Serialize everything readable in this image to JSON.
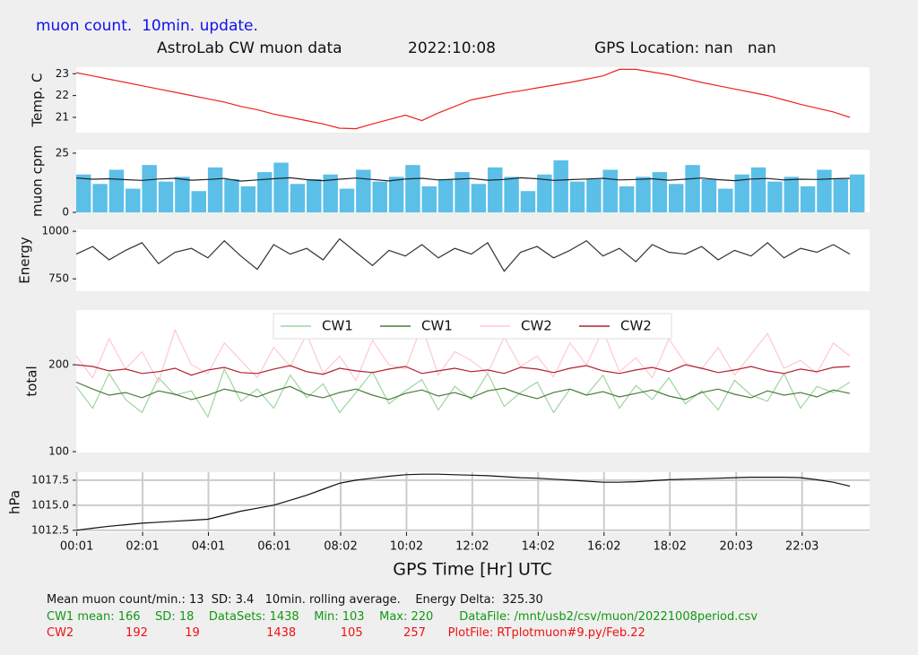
{
  "header": {
    "subtitle": "muon count.  10min. update.",
    "title": "AstroLab CW muon data",
    "date": "2022:10:08",
    "location": "GPS Location: nan   nan"
  },
  "xlabel": "GPS Time  [Hr] UTC",
  "footer": {
    "lines": [
      "Mean muon count/min.: 13  SD: 3.4   10min. rolling average.    Energy Delta:  325.30",
      "CW1 mean: 166    SD: 18    DataSets: 1438    Min: 103    Max: 220       DataFile: /mnt/usb2/csv/muon/20221008period.csv",
      "CW2              192          19                  1438            105           257      PlotFile: RTplotmuon#9.py/Feb.22"
    ]
  },
  "chart_data": [
    {
      "type": "line",
      "ylabel": "Temp. C",
      "xlim": [
        0,
        24.1
      ],
      "ylim": [
        20.3,
        23.3
      ],
      "yticks": [
        21,
        22,
        23
      ],
      "grid": false,
      "x": [
        0,
        0.5,
        1,
        1.5,
        2,
        2.5,
        3,
        3.5,
        4,
        4.5,
        5,
        5.5,
        6,
        6.5,
        7,
        7.5,
        8,
        8.5,
        9,
        9.5,
        10,
        10.5,
        11,
        11.5,
        12,
        12.5,
        13,
        13.5,
        14,
        14.5,
        15,
        15.5,
        16,
        16.5,
        17,
        17.5,
        18,
        18.5,
        19,
        19.5,
        20,
        20.5,
        21,
        21.5,
        22,
        22.5,
        23,
        23.5
      ],
      "series": [
        {
          "type": "line",
          "color": "#ee2222",
          "values": [
            23.05,
            22.9,
            22.75,
            22.6,
            22.45,
            22.3,
            22.15,
            22.0,
            21.85,
            21.7,
            21.5,
            21.35,
            21.15,
            21.0,
            20.85,
            20.7,
            20.5,
            20.48,
            20.7,
            20.9,
            21.1,
            20.85,
            21.2,
            21.5,
            21.8,
            21.95,
            22.1,
            22.22,
            22.35,
            22.48,
            22.6,
            22.75,
            22.9,
            23.2,
            23.2,
            23.08,
            22.95,
            22.78,
            22.6,
            22.45,
            22.3,
            22.15,
            22.0,
            21.8,
            21.6,
            21.42,
            21.25,
            21.0
          ]
        }
      ]
    },
    {
      "type": "line",
      "ylabel": "muon cpm",
      "xlim": [
        0,
        24.1
      ],
      "ylim": [
        0,
        26.5
      ],
      "yticks": [
        0,
        25
      ],
      "grid": false,
      "x": [
        0,
        0.5,
        1,
        1.5,
        2,
        2.5,
        3,
        3.5,
        4,
        4.5,
        5,
        5.5,
        6,
        6.5,
        7,
        7.5,
        8,
        8.5,
        9,
        9.5,
        10,
        10.5,
        11,
        11.5,
        12,
        12.5,
        13,
        13.5,
        14,
        14.5,
        15,
        15.5,
        16,
        16.5,
        17,
        17.5,
        18,
        18.5,
        19,
        19.5,
        20,
        20.5,
        21,
        21.5,
        22,
        22.5,
        23,
        23.5
      ],
      "series": [
        {
          "type": "bar",
          "color": "#5bbfe8",
          "values": [
            16,
            12,
            18,
            10,
            20,
            13,
            15,
            9,
            19,
            14,
            11,
            17,
            21,
            12,
            14,
            16,
            10,
            18,
            13,
            15,
            20,
            11,
            14,
            17,
            12,
            19,
            15,
            9,
            16,
            22,
            13,
            14,
            18,
            11,
            15,
            17,
            12,
            20,
            14,
            10,
            16,
            19,
            13,
            15,
            11,
            18,
            14,
            16
          ]
        },
        {
          "type": "line",
          "color": "#222222",
          "values": [
            14.5,
            14,
            14.2,
            13.8,
            13.5,
            14.1,
            14.4,
            13.6,
            13.9,
            14.3,
            13.2,
            13.7,
            14.2,
            14.6,
            13.8,
            13.4,
            14,
            14.5,
            13.9,
            13.3,
            14.1,
            14.4,
            13.7,
            14,
            14.3,
            13.6,
            13.9,
            14.6,
            14.2,
            13.5,
            13.8,
            14.1,
            14.4,
            13.7,
            13.9,
            14.2,
            13.6,
            14,
            14.5,
            13.8,
            13.4,
            14.1,
            14.3,
            13.7,
            14,
            13.9,
            14.2,
            14.4
          ]
        }
      ]
    },
    {
      "type": "line",
      "ylabel": "Energy",
      "xlim": [
        0,
        24.1
      ],
      "ylim": [
        685,
        1010
      ],
      "yticks": [
        750,
        1000
      ],
      "grid": false,
      "x": [
        0,
        0.5,
        1,
        1.5,
        2,
        2.5,
        3,
        3.5,
        4,
        4.5,
        5,
        5.5,
        6,
        6.5,
        7,
        7.5,
        8,
        8.5,
        9,
        9.5,
        10,
        10.5,
        11,
        11.5,
        12,
        12.5,
        13,
        13.5,
        14,
        14.5,
        15,
        15.5,
        16,
        16.5,
        17,
        17.5,
        18,
        18.5,
        19,
        19.5,
        20,
        20.5,
        21,
        21.5,
        22,
        22.5,
        23,
        23.5
      ],
      "series": [
        {
          "type": "line",
          "color": "#333333",
          "values": [
            880,
            920,
            850,
            900,
            940,
            830,
            890,
            910,
            860,
            950,
            870,
            800,
            930,
            880,
            910,
            850,
            960,
            890,
            820,
            900,
            870,
            930,
            860,
            910,
            880,
            940,
            790,
            890,
            920,
            860,
            900,
            950,
            870,
            910,
            840,
            930,
            890,
            880,
            920,
            850,
            900,
            870,
            940,
            860,
            910,
            890,
            930,
            880
          ]
        }
      ]
    },
    {
      "type": "line",
      "ylabel": "total",
      "xlim": [
        0,
        24.1
      ],
      "ylim": [
        99,
        263
      ],
      "yticks": [
        100,
        200
      ],
      "grid": false,
      "x": [
        0,
        0.5,
        1,
        1.5,
        2,
        2.5,
        3,
        3.5,
        4,
        4.5,
        5,
        5.5,
        6,
        6.5,
        7,
        7.5,
        8,
        8.5,
        9,
        9.5,
        10,
        10.5,
        11,
        11.5,
        12,
        12.5,
        13,
        13.5,
        14,
        14.5,
        15,
        15.5,
        16,
        16.5,
        17,
        17.5,
        18,
        18.5,
        19,
        19.5,
        20,
        20.5,
        21,
        21.5,
        22,
        22.5,
        23,
        23.5
      ],
      "series": [
        {
          "name": "CW1",
          "type": "line",
          "color": "#9fd49f",
          "values": [
            175,
            150,
            190,
            160,
            145,
            185,
            165,
            170,
            140,
            195,
            158,
            172,
            150,
            188,
            162,
            178,
            145,
            168,
            192,
            155,
            170,
            183,
            148,
            175,
            160,
            190,
            152,
            168,
            180,
            145,
            172,
            165,
            188,
            150,
            176,
            160,
            185,
            155,
            170,
            148,
            182,
            165,
            158,
            190,
            150,
            175,
            168,
            180
          ]
        },
        {
          "name": "CW1",
          "type": "line",
          "color": "#4a7a3a",
          "values": [
            180,
            172,
            165,
            168,
            162,
            170,
            166,
            160,
            165,
            172,
            168,
            163,
            170,
            175,
            166,
            162,
            168,
            172,
            165,
            160,
            167,
            171,
            164,
            168,
            162,
            170,
            173,
            166,
            161,
            168,
            172,
            165,
            169,
            163,
            167,
            171,
            164,
            160,
            168,
            172,
            166,
            162,
            170,
            165,
            168,
            163,
            171,
            167
          ]
        },
        {
          "name": "CW2",
          "type": "line",
          "color": "#ffc8d0",
          "values": [
            210,
            185,
            230,
            195,
            215,
            180,
            240,
            200,
            190,
            225,
            205,
            185,
            220,
            198,
            235,
            190,
            210,
            182,
            228,
            200,
            195,
            245,
            188,
            215,
            205,
            190,
            232,
            198,
            210,
            186,
            225,
            200,
            240,
            192,
            208,
            185,
            230,
            202,
            195,
            220,
            188,
            212,
            236,
            196,
            205,
            190,
            225,
            210
          ]
        },
        {
          "name": "CW2",
          "type": "line",
          "color": "#b22030",
          "values": [
            200,
            198,
            193,
            195,
            190,
            192,
            196,
            188,
            194,
            197,
            191,
            190,
            195,
            199,
            192,
            189,
            196,
            193,
            191,
            195,
            198,
            190,
            193,
            196,
            192,
            194,
            190,
            197,
            195,
            191,
            196,
            199,
            193,
            190,
            194,
            197,
            192,
            200,
            196,
            191,
            194,
            198,
            193,
            190,
            195,
            192,
            197,
            198
          ]
        }
      ]
    },
    {
      "type": "line",
      "ylabel": "hPa",
      "xlim": [
        0,
        24.1
      ],
      "ylim": [
        1012.3,
        1018.3
      ],
      "yticks": [
        1012.5,
        {
          "value": 1015,
          "label": "1015.0"
        },
        1017.5
      ],
      "grid": true,
      "xticks": [
        {
          "value": 0.017,
          "label": "00:01"
        },
        {
          "value": 2.017,
          "label": "02:01"
        },
        {
          "value": 4.017,
          "label": "04:01"
        },
        {
          "value": 6.017,
          "label": "06:01"
        },
        {
          "value": 8.033,
          "label": "08:02"
        },
        {
          "value": 10.033,
          "label": "10:02"
        },
        {
          "value": 12.033,
          "label": "12:02"
        },
        {
          "value": 14.033,
          "label": "14:02"
        },
        {
          "value": 16.033,
          "label": "16:02"
        },
        {
          "value": 18.033,
          "label": "18:02"
        },
        {
          "value": 20.05,
          "label": "20:03"
        },
        {
          "value": 22.05,
          "label": "22:03"
        }
      ],
      "x": [
        0,
        0.5,
        1,
        1.5,
        2,
        2.5,
        3,
        3.5,
        4,
        4.5,
        5,
        5.5,
        6,
        6.5,
        7,
        7.5,
        8,
        8.5,
        9,
        9.5,
        10,
        10.5,
        11,
        11.5,
        12,
        12.5,
        13,
        13.5,
        14,
        14.5,
        15,
        15.5,
        16,
        16.5,
        17,
        17.5,
        18,
        18.5,
        19,
        19.5,
        20,
        20.5,
        21,
        21.5,
        22,
        22.5,
        23,
        23.5
      ],
      "series": [
        {
          "type": "line",
          "color": "#111111",
          "values": [
            1012.5,
            1012.7,
            1012.9,
            1013.05,
            1013.2,
            1013.3,
            1013.4,
            1013.5,
            1013.6,
            1014.0,
            1014.4,
            1014.7,
            1015.0,
            1015.5,
            1016.0,
            1016.6,
            1017.2,
            1017.5,
            1017.7,
            1017.9,
            1018.05,
            1018.1,
            1018.1,
            1018.05,
            1018.0,
            1017.95,
            1017.85,
            1017.75,
            1017.7,
            1017.6,
            1017.5,
            1017.4,
            1017.3,
            1017.3,
            1017.35,
            1017.45,
            1017.55,
            1017.6,
            1017.65,
            1017.7,
            1017.75,
            1017.8,
            1017.8,
            1017.8,
            1017.75,
            1017.55,
            1017.3,
            1016.9
          ]
        }
      ]
    }
  ]
}
